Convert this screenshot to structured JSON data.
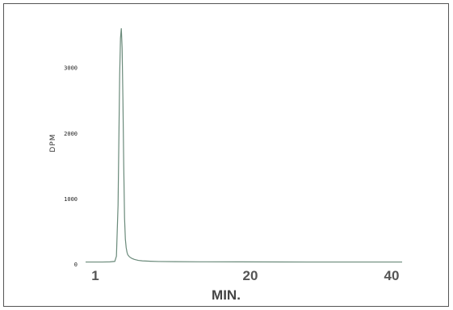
{
  "chart_data": {
    "type": "line",
    "title": "",
    "xlabel": "MIN.",
    "ylabel": "DPM",
    "xlim": [
      1,
      40
    ],
    "ylim": [
      0,
      3600
    ],
    "x_ticks": [
      1,
      20,
      40
    ],
    "x_tick_labels": [
      "1",
      "20",
      "40"
    ],
    "y_ticks": [
      0,
      1000,
      2000,
      3000
    ],
    "y_tick_labels": [
      "0",
      "1000",
      "2000",
      "3000"
    ],
    "grid": false,
    "legend": "none",
    "line_color": "#6a8a7a",
    "series": [
      {
        "x": [
          1,
          2,
          3,
          4,
          4.6,
          4.8,
          5.0,
          5.2,
          5.3,
          5.4,
          5.5,
          5.6,
          5.7,
          5.8,
          5.9,
          6.0,
          6.1,
          6.2,
          6.4,
          6.7,
          7.0,
          7.5,
          8.0,
          9.0,
          10,
          12,
          15,
          20,
          25,
          30,
          35,
          40
        ],
        "y": [
          30,
          30,
          30,
          32,
          40,
          120,
          900,
          2900,
          3450,
          3600,
          3300,
          2500,
          1500,
          700,
          380,
          250,
          180,
          140,
          110,
          85,
          70,
          55,
          48,
          42,
          38,
          35,
          33,
          32,
          31,
          30,
          30,
          30
        ]
      }
    ]
  }
}
